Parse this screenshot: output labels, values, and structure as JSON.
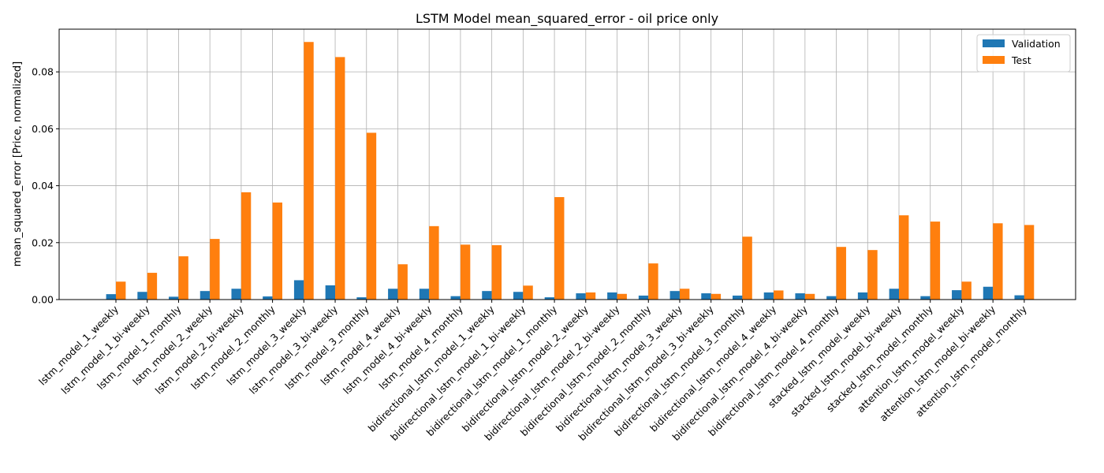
{
  "chart_data": {
    "type": "bar",
    "title": "LSTM Model mean_squared_error - oil price only",
    "xlabel": "",
    "ylabel": "mean_squared_error [Price, normalized]",
    "ylim": [
      0,
      0.095
    ],
    "yticks": [
      "0.00",
      "0.02",
      "0.04",
      "0.06",
      "0.08"
    ],
    "ytick_values": [
      0,
      0.02,
      0.04,
      0.06,
      0.08
    ],
    "grid": true,
    "legend_position": "top-right",
    "categories": [
      "lstm_model_1_weekly",
      "lstm_model_1_bi-weekly",
      "lstm_model_1_monthly",
      "lstm_model_2_weekly",
      "lstm_model_2_bi-weekly",
      "lstm_model_2_monthly",
      "lstm_model_3_weekly",
      "lstm_model_3_bi-weekly",
      "lstm_model_3_monthly",
      "lstm_model_4_weekly",
      "lstm_model_4_bi-weekly",
      "lstm_model_4_monthly",
      "bidirectional_lstm_model_1_weekly",
      "bidirectional_lstm_model_1_bi-weekly",
      "bidirectional_lstm_model_1_monthly",
      "bidirectional_lstm_model_2_weekly",
      "bidirectional_lstm_model_2_bi-weekly",
      "bidirectional_lstm_model_2_monthly",
      "bidirectional_lstm_model_3_weekly",
      "bidirectional_lstm_model_3_bi-weekly",
      "bidirectional_lstm_model_3_monthly",
      "bidirectional_lstm_model_4_weekly",
      "bidirectional_lstm_model_4_bi-weekly",
      "bidirectional_lstm_model_4_monthly",
      "stacked_lstm_model_weekly",
      "stacked_lstm_model_bi-weekly",
      "stacked_lstm_model_monthly",
      "attention_lstm_model_weekly",
      "attention_lstm_model_bi-weekly",
      "attention_lstm_model_monthly"
    ],
    "series": [
      {
        "name": "Validation",
        "color": "#1f77b4",
        "values": [
          0.0019,
          0.0027,
          0.001,
          0.003,
          0.0038,
          0.0011,
          0.0068,
          0.005,
          0.0008,
          0.0038,
          0.0038,
          0.0012,
          0.003,
          0.0027,
          0.0008,
          0.0022,
          0.0025,
          0.0014,
          0.003,
          0.0022,
          0.0014,
          0.0025,
          0.0022,
          0.0012,
          0.0025,
          0.0038,
          0.0012,
          0.0033,
          0.0045,
          0.0015
        ]
      },
      {
        "name": "Test",
        "color": "#ff7f0e",
        "values": [
          0.0063,
          0.0094,
          0.0152,
          0.0213,
          0.0377,
          0.0341,
          0.0905,
          0.0852,
          0.0586,
          0.0124,
          0.0258,
          0.0193,
          0.0191,
          0.0049,
          0.036,
          0.0025,
          0.002,
          0.0127,
          0.0038,
          0.002,
          0.0221,
          0.0032,
          0.002,
          0.0185,
          0.0174,
          0.0296,
          0.0274,
          0.0063,
          0.0268,
          0.0262
        ]
      }
    ]
  }
}
